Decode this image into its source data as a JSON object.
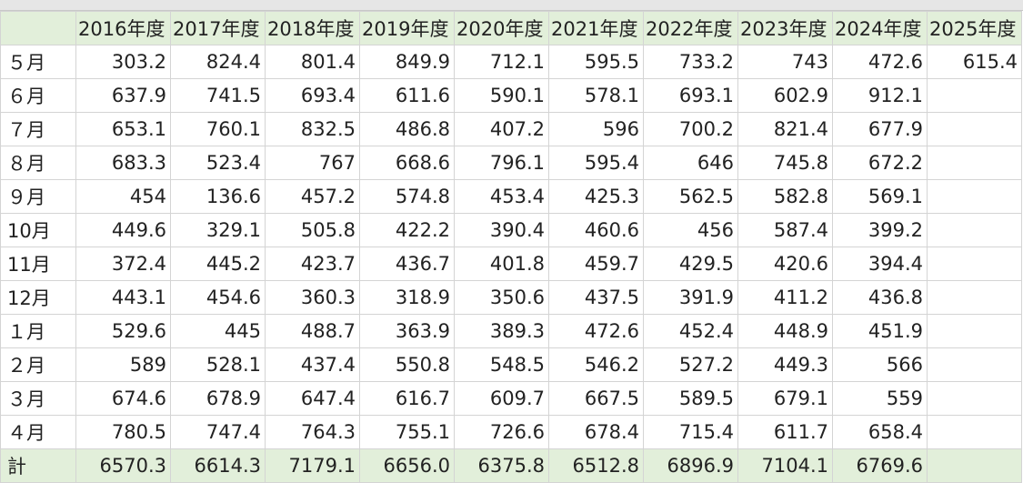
{
  "years": [
    "2016年度",
    "2017年度",
    "2018年度",
    "2019年度",
    "2020年度",
    "2021年度",
    "2022年度",
    "2023年度",
    "2024年度",
    "2025年度"
  ],
  "rows": [
    {
      "label": "５月",
      "values": [
        "303.2",
        "824.4",
        "801.4",
        "849.9",
        "712.1",
        "595.5",
        "733.2",
        "743",
        "472.6",
        "615.4"
      ]
    },
    {
      "label": "６月",
      "values": [
        "637.9",
        "741.5",
        "693.4",
        "611.6",
        "590.1",
        "578.1",
        "693.1",
        "602.9",
        "912.1",
        ""
      ]
    },
    {
      "label": "７月",
      "values": [
        "653.1",
        "760.1",
        "832.5",
        "486.8",
        "407.2",
        "596",
        "700.2",
        "821.4",
        "677.9",
        ""
      ]
    },
    {
      "label": "８月",
      "values": [
        "683.3",
        "523.4",
        "767",
        "668.6",
        "796.1",
        "595.4",
        "646",
        "745.8",
        "672.2",
        ""
      ]
    },
    {
      "label": "９月",
      "values": [
        "454",
        "136.6",
        "457.2",
        "574.8",
        "453.4",
        "425.3",
        "562.5",
        "582.8",
        "569.1",
        ""
      ]
    },
    {
      "label": "10月",
      "values": [
        "449.6",
        "329.1",
        "505.8",
        "422.2",
        "390.4",
        "460.6",
        "456",
        "587.4",
        "399.2",
        ""
      ]
    },
    {
      "label": "11月",
      "values": [
        "372.4",
        "445.2",
        "423.7",
        "436.7",
        "401.8",
        "459.7",
        "429.5",
        "420.6",
        "394.4",
        ""
      ]
    },
    {
      "label": "12月",
      "values": [
        "443.1",
        "454.6",
        "360.3",
        "318.9",
        "350.6",
        "437.5",
        "391.9",
        "411.2",
        "436.8",
        ""
      ]
    },
    {
      "label": "１月",
      "values": [
        "529.6",
        "445",
        "488.7",
        "363.9",
        "389.3",
        "472.6",
        "452.4",
        "448.9",
        "451.9",
        ""
      ]
    },
    {
      "label": "２月",
      "values": [
        "589",
        "528.1",
        "437.4",
        "550.8",
        "548.5",
        "546.2",
        "527.2",
        "449.3",
        "566",
        ""
      ]
    },
    {
      "label": "３月",
      "values": [
        "674.6",
        "678.9",
        "647.4",
        "616.7",
        "609.7",
        "667.5",
        "589.5",
        "679.1",
        "559",
        ""
      ]
    },
    {
      "label": "４月",
      "values": [
        "780.5",
        "747.4",
        "764.3",
        "755.1",
        "726.6",
        "678.4",
        "715.4",
        "611.7",
        "658.4",
        ""
      ]
    }
  ],
  "total": {
    "label": "計",
    "values": [
      "6570.3",
      "6614.3",
      "7179.1",
      "6656.0",
      "6375.8",
      "6512.8",
      "6896.9",
      "7104.1",
      "6769.6",
      ""
    ]
  }
}
